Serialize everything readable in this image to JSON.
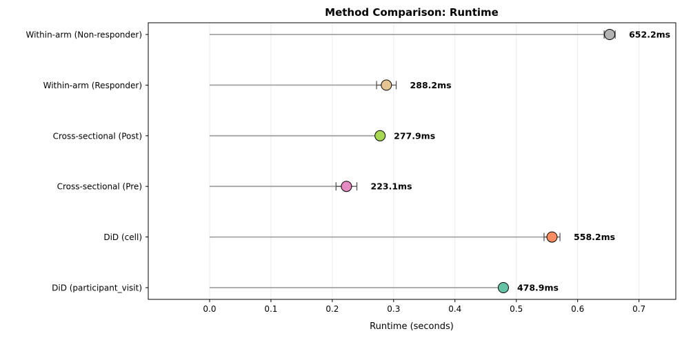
{
  "chart_data": {
    "type": "lollipop",
    "title": "Method Comparison: Runtime",
    "xlabel": "Runtime (seconds)",
    "ylabel": "",
    "xlim": [
      -0.1,
      0.76
    ],
    "xticks": [
      0.0,
      0.1,
      0.2,
      0.3,
      0.4,
      0.5,
      0.6,
      0.7
    ],
    "xtick_labels": [
      "0.0",
      "0.1",
      "0.2",
      "0.3",
      "0.4",
      "0.5",
      "0.6",
      "0.7"
    ],
    "grid": "vertical",
    "categories": [
      "Within-arm (Non-responder)",
      "Within-arm (Responder)",
      "Cross-sectional (Post)",
      "Cross-sectional (Pre)",
      "DiD (cell)",
      "DiD (participant_visit)"
    ],
    "values": [
      0.6522,
      0.2882,
      0.2779,
      0.2231,
      0.5582,
      0.4789
    ],
    "errors": [
      0.009,
      0.016,
      0.0,
      0.017,
      0.013,
      0.0
    ],
    "data_labels": [
      "652.2ms",
      "288.2ms",
      "277.9ms",
      "223.1ms",
      "558.2ms",
      "478.9ms"
    ],
    "colors": [
      "#b3b3b3",
      "#e5c494",
      "#a6d854",
      "#e78ac3",
      "#fc8d62",
      "#66c2a5"
    ]
  }
}
